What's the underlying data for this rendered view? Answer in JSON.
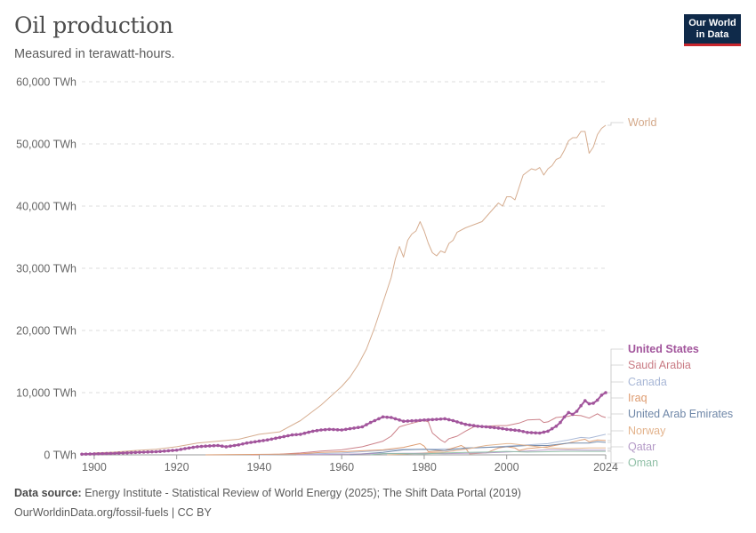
{
  "header": {
    "title": "Oil production",
    "subtitle": "Measured in terawatt-hours.",
    "logo_line1": "Our World",
    "logo_line2": "in Data"
  },
  "footer": {
    "source_label": "Data source:",
    "source_text": "Energy Institute - Statistical Review of World Energy (2025); The Shift Data Portal (2019)",
    "link_text": "OurWorldinData.org/fossil-fuels | CC BY"
  },
  "chart_data": {
    "type": "line",
    "title": "Oil production",
    "subtitle": "Measured in terawatt-hours.",
    "xlabel": "",
    "ylabel": "",
    "xlim": [
      1897,
      2024
    ],
    "ylim": [
      0,
      60000
    ],
    "x_ticks": [
      1900,
      1920,
      1940,
      1960,
      1980,
      2000,
      2024
    ],
    "x_tick_labels": [
      "1900",
      "1920",
      "1940",
      "1960",
      "1980",
      "2000",
      "2024"
    ],
    "y_ticks": [
      0,
      10000,
      20000,
      30000,
      40000,
      50000,
      60000
    ],
    "y_tick_labels": [
      "0 TWh",
      "10,000 TWh",
      "20,000 TWh",
      "30,000 TWh",
      "40,000 TWh",
      "50,000 TWh",
      "60,000 TWh"
    ],
    "grid": "horizontal dashed",
    "legend": "right, labels at line ends",
    "highlighted_series": "United States",
    "series": [
      {
        "name": "World",
        "color": "#d4a98a",
        "points": [
          [
            1900,
            300
          ],
          [
            1905,
            450
          ],
          [
            1910,
            700
          ],
          [
            1915,
            900
          ],
          [
            1920,
            1300
          ],
          [
            1925,
            1900
          ],
          [
            1930,
            2200
          ],
          [
            1935,
            2500
          ],
          [
            1940,
            3300
          ],
          [
            1945,
            3700
          ],
          [
            1950,
            5500
          ],
          [
            1955,
            8000
          ],
          [
            1960,
            11000
          ],
          [
            1962,
            12500
          ],
          [
            1964,
            14500
          ],
          [
            1966,
            17000
          ],
          [
            1968,
            20500
          ],
          [
            1970,
            24500
          ],
          [
            1972,
            28500
          ],
          [
            1973,
            31500
          ],
          [
            1974,
            33500
          ],
          [
            1975,
            31800
          ],
          [
            1976,
            34500
          ],
          [
            1977,
            35500
          ],
          [
            1978,
            36000
          ],
          [
            1979,
            37500
          ],
          [
            1980,
            36000
          ],
          [
            1981,
            34000
          ],
          [
            1982,
            32500
          ],
          [
            1983,
            32000
          ],
          [
            1984,
            32800
          ],
          [
            1985,
            32500
          ],
          [
            1986,
            34000
          ],
          [
            1987,
            34500
          ],
          [
            1988,
            35800
          ],
          [
            1990,
            36500
          ],
          [
            1992,
            37000
          ],
          [
            1994,
            37500
          ],
          [
            1996,
            39000
          ],
          [
            1998,
            40500
          ],
          [
            1999,
            40000
          ],
          [
            2000,
            41500
          ],
          [
            2001,
            41500
          ],
          [
            2002,
            41000
          ],
          [
            2003,
            43000
          ],
          [
            2004,
            45000
          ],
          [
            2005,
            45500
          ],
          [
            2006,
            46000
          ],
          [
            2007,
            45800
          ],
          [
            2008,
            46200
          ],
          [
            2009,
            45000
          ],
          [
            2010,
            46000
          ],
          [
            2011,
            46500
          ],
          [
            2012,
            47500
          ],
          [
            2013,
            47800
          ],
          [
            2014,
            49000
          ],
          [
            2015,
            50500
          ],
          [
            2016,
            51000
          ],
          [
            2017,
            51000
          ],
          [
            2018,
            52000
          ],
          [
            2019,
            52000
          ],
          [
            2020,
            48500
          ],
          [
            2021,
            49500
          ],
          [
            2022,
            51500
          ],
          [
            2023,
            52500
          ],
          [
            2024,
            53000
          ]
        ]
      },
      {
        "name": "United States",
        "color": "#a2559c",
        "highlighted": true,
        "points": [
          [
            1897,
            100
          ],
          [
            1900,
            150
          ],
          [
            1905,
            250
          ],
          [
            1910,
            380
          ],
          [
            1915,
            500
          ],
          [
            1920,
            750
          ],
          [
            1922,
            1000
          ],
          [
            1925,
            1300
          ],
          [
            1927,
            1400
          ],
          [
            1930,
            1500
          ],
          [
            1932,
            1300
          ],
          [
            1935,
            1600
          ],
          [
            1937,
            1900
          ],
          [
            1940,
            2200
          ],
          [
            1942,
            2400
          ],
          [
            1945,
            2800
          ],
          [
            1948,
            3200
          ],
          [
            1950,
            3300
          ],
          [
            1953,
            3800
          ],
          [
            1955,
            4000
          ],
          [
            1957,
            4100
          ],
          [
            1960,
            4000
          ],
          [
            1962,
            4200
          ],
          [
            1965,
            4500
          ],
          [
            1967,
            5200
          ],
          [
            1970,
            6100
          ],
          [
            1972,
            6000
          ],
          [
            1975,
            5400
          ],
          [
            1978,
            5500
          ],
          [
            1980,
            5600
          ],
          [
            1983,
            5700
          ],
          [
            1985,
            5800
          ],
          [
            1987,
            5500
          ],
          [
            1990,
            4900
          ],
          [
            1993,
            4600
          ],
          [
            1995,
            4500
          ],
          [
            1998,
            4300
          ],
          [
            2000,
            4100
          ],
          [
            2003,
            3900
          ],
          [
            2005,
            3600
          ],
          [
            2008,
            3500
          ],
          [
            2010,
            3800
          ],
          [
            2012,
            4600
          ],
          [
            2013,
            5200
          ],
          [
            2014,
            6100
          ],
          [
            2015,
            6800
          ],
          [
            2016,
            6500
          ],
          [
            2017,
            7000
          ],
          [
            2018,
            7900
          ],
          [
            2019,
            8700
          ],
          [
            2020,
            8200
          ],
          [
            2021,
            8300
          ],
          [
            2022,
            8800
          ],
          [
            2023,
            9600
          ],
          [
            2024,
            10000
          ]
        ]
      },
      {
        "name": "Saudi Arabia",
        "color": "#c97b84",
        "points": [
          [
            1938,
            0
          ],
          [
            1945,
            100
          ],
          [
            1950,
            300
          ],
          [
            1955,
            600
          ],
          [
            1960,
            800
          ],
          [
            1965,
            1300
          ],
          [
            1970,
            2200
          ],
          [
            1972,
            3000
          ],
          [
            1974,
            4500
          ],
          [
            1976,
            4900
          ],
          [
            1979,
            5400
          ],
          [
            1980,
            5500
          ],
          [
            1981,
            5300
          ],
          [
            1982,
            3500
          ],
          [
            1984,
            2400
          ],
          [
            1985,
            2000
          ],
          [
            1986,
            2600
          ],
          [
            1988,
            3000
          ],
          [
            1990,
            3800
          ],
          [
            1992,
            4500
          ],
          [
            1995,
            4600
          ],
          [
            1998,
            4700
          ],
          [
            2000,
            4700
          ],
          [
            2003,
            5100
          ],
          [
            2005,
            5600
          ],
          [
            2008,
            5700
          ],
          [
            2009,
            5200
          ],
          [
            2010,
            5300
          ],
          [
            2012,
            6000
          ],
          [
            2015,
            6200
          ],
          [
            2016,
            6400
          ],
          [
            2018,
            6300
          ],
          [
            2020,
            5900
          ],
          [
            2022,
            6600
          ],
          [
            2023,
            6200
          ],
          [
            2024,
            6000
          ]
        ]
      },
      {
        "name": "Canada",
        "color": "#a8b7d6",
        "points": [
          [
            1940,
            0
          ],
          [
            1950,
            100
          ],
          [
            1955,
            200
          ],
          [
            1960,
            300
          ],
          [
            1965,
            500
          ],
          [
            1970,
            700
          ],
          [
            1975,
            900
          ],
          [
            1980,
            900
          ],
          [
            1985,
            950
          ],
          [
            1990,
            1000
          ],
          [
            1995,
            1200
          ],
          [
            2000,
            1400
          ],
          [
            2005,
            1600
          ],
          [
            2010,
            1800
          ],
          [
            2015,
            2400
          ],
          [
            2018,
            2800
          ],
          [
            2020,
            2700
          ],
          [
            2022,
            3000
          ],
          [
            2024,
            3300
          ]
        ]
      },
      {
        "name": "Iraq",
        "color": "#dd9a6e",
        "points": [
          [
            1927,
            0
          ],
          [
            1935,
            50
          ],
          [
            1945,
            100
          ],
          [
            1950,
            150
          ],
          [
            1955,
            400
          ],
          [
            1960,
            500
          ],
          [
            1965,
            650
          ],
          [
            1970,
            800
          ],
          [
            1975,
            1200
          ],
          [
            1979,
            1800
          ],
          [
            1980,
            1400
          ],
          [
            1981,
            500
          ],
          [
            1985,
            700
          ],
          [
            1989,
            1500
          ],
          [
            1990,
            1100
          ],
          [
            1991,
            150
          ],
          [
            1995,
            300
          ],
          [
            1998,
            1100
          ],
          [
            2000,
            1300
          ],
          [
            2002,
            1100
          ],
          [
            2003,
            700
          ],
          [
            2005,
            1000
          ],
          [
            2010,
            1300
          ],
          [
            2015,
            1900
          ],
          [
            2018,
            2400
          ],
          [
            2019,
            2500
          ],
          [
            2020,
            2100
          ],
          [
            2022,
            2400
          ],
          [
            2024,
            2300
          ]
        ]
      },
      {
        "name": "United Arab Emirates",
        "color": "#6f87a8",
        "points": [
          [
            1962,
            0
          ],
          [
            1965,
            150
          ],
          [
            1970,
            400
          ],
          [
            1975,
            800
          ],
          [
            1980,
            900
          ],
          [
            1985,
            700
          ],
          [
            1990,
            1100
          ],
          [
            1995,
            1200
          ],
          [
            2000,
            1300
          ],
          [
            2005,
            1500
          ],
          [
            2010,
            1500
          ],
          [
            2015,
            1900
          ],
          [
            2020,
            1900
          ],
          [
            2022,
            2100
          ],
          [
            2024,
            2000
          ]
        ]
      },
      {
        "name": "Norway",
        "color": "#e3b38c",
        "points": [
          [
            1971,
            0
          ],
          [
            1975,
            100
          ],
          [
            1980,
            300
          ],
          [
            1985,
            450
          ],
          [
            1990,
            900
          ],
          [
            1995,
            1500
          ],
          [
            2000,
            1800
          ],
          [
            2001,
            1800
          ],
          [
            2005,
            1500
          ],
          [
            2010,
            1100
          ],
          [
            2015,
            1000
          ],
          [
            2020,
            1100
          ],
          [
            2024,
            1100
          ]
        ]
      },
      {
        "name": "Qatar",
        "color": "#b49ac7",
        "points": [
          [
            1949,
            0
          ],
          [
            1955,
            50
          ],
          [
            1960,
            100
          ],
          [
            1965,
            150
          ],
          [
            1970,
            200
          ],
          [
            1975,
            250
          ],
          [
            1980,
            250
          ],
          [
            1985,
            200
          ],
          [
            1990,
            250
          ],
          [
            1995,
            300
          ],
          [
            2000,
            450
          ],
          [
            2005,
            600
          ],
          [
            2010,
            800
          ],
          [
            2015,
            800
          ],
          [
            2020,
            750
          ],
          [
            2024,
            750
          ]
        ]
      },
      {
        "name": "Oman",
        "color": "#8fbfa6",
        "points": [
          [
            1967,
            0
          ],
          [
            1970,
            200
          ],
          [
            1975,
            200
          ],
          [
            1980,
            150
          ],
          [
            1985,
            300
          ],
          [
            1990,
            400
          ],
          [
            1995,
            450
          ],
          [
            2000,
            550
          ],
          [
            2005,
            450
          ],
          [
            2010,
            500
          ],
          [
            2015,
            550
          ],
          [
            2020,
            550
          ],
          [
            2024,
            550
          ]
        ]
      }
    ]
  }
}
